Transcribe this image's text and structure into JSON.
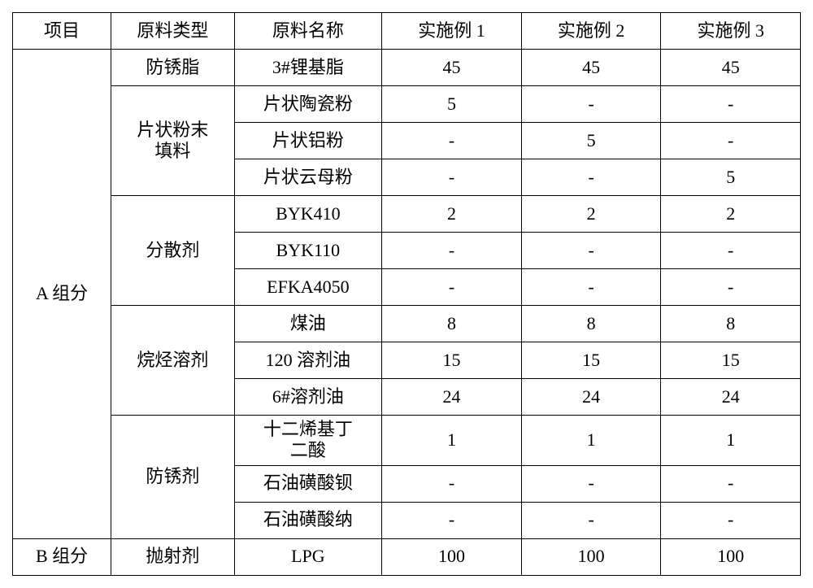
{
  "headers": {
    "project": "项目",
    "mat_type": "原料类型",
    "mat_name": "原料名称",
    "ex1": "实施例 1",
    "ex2": "实施例 2",
    "ex3": "实施例 3"
  },
  "groupA": "A 组分",
  "groupB": "B 组分",
  "types": {
    "rustgrease": "防锈脂",
    "flakefiller": "片状粉末\n填料",
    "dispersant": "分散剂",
    "alkane": "烷烃溶剂",
    "rustinhib": "防锈剂",
    "propellant": "抛射剂"
  },
  "rows": {
    "r1": {
      "name": "3#锂基脂",
      "v1": "45",
      "v2": "45",
      "v3": "45"
    },
    "r2": {
      "name": "片状陶瓷粉",
      "v1": "5",
      "v2": "-",
      "v3": "-"
    },
    "r3": {
      "name": "片状铝粉",
      "v1": "-",
      "v2": "5",
      "v3": "-"
    },
    "r4": {
      "name": "片状云母粉",
      "v1": "-",
      "v2": "-",
      "v3": "5"
    },
    "r5": {
      "name": "BYK410",
      "v1": "2",
      "v2": "2",
      "v3": "2"
    },
    "r6": {
      "name": "BYK110",
      "v1": "-",
      "v2": "-",
      "v3": "-"
    },
    "r7": {
      "name": "EFKA4050",
      "v1": "-",
      "v2": "-",
      "v3": "-"
    },
    "r8": {
      "name": "煤油",
      "v1": "8",
      "v2": "8",
      "v3": "8"
    },
    "r9": {
      "name": "120 溶剂油",
      "v1": "15",
      "v2": "15",
      "v3": "15"
    },
    "r10": {
      "name": "6#溶剂油",
      "v1": "24",
      "v2": "24",
      "v3": "24"
    },
    "r11": {
      "name": "十二烯基丁\n二酸",
      "v1": "1",
      "v2": "1",
      "v3": "1"
    },
    "r12": {
      "name": "石油磺酸钡",
      "v1": "-",
      "v2": "-",
      "v3": "-"
    },
    "r13": {
      "name": "石油磺酸纳",
      "v1": "-",
      "v2": "-",
      "v3": "-"
    },
    "r14": {
      "name": "LPG",
      "v1": "100",
      "v2": "100",
      "v3": "100"
    }
  }
}
